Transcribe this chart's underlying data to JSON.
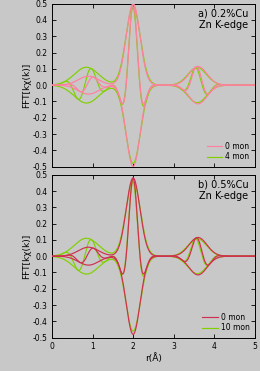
{
  "title_a": "a) 0.2%Cu\nZn K-edge",
  "title_b": "b) 0.5%Cu\nZn K-edge",
  "ylabel": "FFT[kχ(k)]",
  "xlabel": "r(Å)",
  "xlim": [
    0,
    5
  ],
  "ylim": [
    -0.5,
    0.5
  ],
  "yticks": [
    -0.5,
    -0.4,
    -0.3,
    -0.2,
    -0.1,
    0,
    0.1,
    0.2,
    0.3,
    0.4,
    0.5
  ],
  "xticks": [
    0,
    1,
    2,
    3,
    4,
    5
  ],
  "legend_a": [
    "0 mon",
    "4 mon"
  ],
  "legend_b": [
    "0 mon",
    "10 mon"
  ],
  "color_pink": "#ff80a0",
  "color_green": "#80d000",
  "color_red": "#d03050",
  "background": "#c8c8c8",
  "linewidth": 0.85
}
